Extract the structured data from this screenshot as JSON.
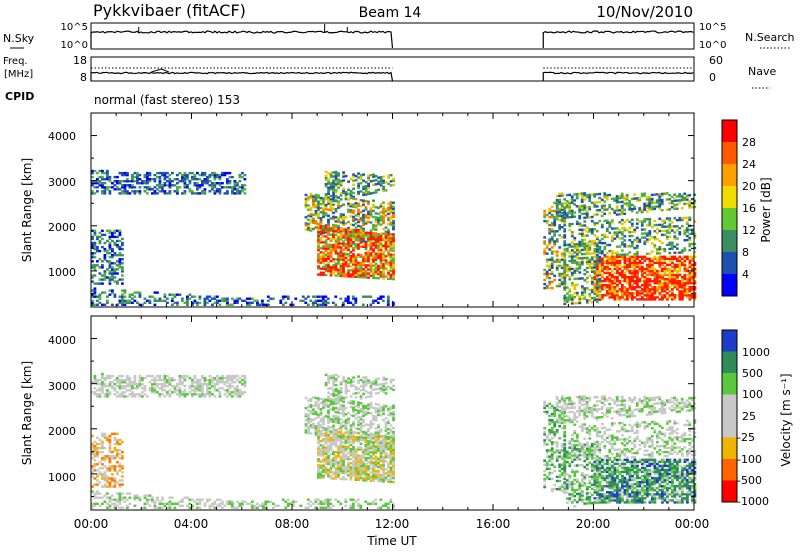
{
  "chart_data": {
    "type": "heatmap",
    "header": {
      "station": "Pykkvibaer (fitACF)",
      "beam": "Beam 14",
      "date": "10/Nov/2010"
    },
    "xlabel": "Time UT",
    "x_ticks": [
      "00:00",
      "04:00",
      "08:00",
      "12:00",
      "16:00",
      "20:00",
      "00:00"
    ],
    "x_range_hours": [
      0,
      24
    ],
    "data_gap_hours": [
      12,
      18
    ],
    "cpid_label": "CPID",
    "cpid_text": "normal (fast stereo) 153",
    "nsky_panel": {
      "left_label": "N.Sky",
      "right_label": "N.Search",
      "tick_top": "10^5",
      "tick_bottom": "10^0",
      "right_tick_top": "10^5",
      "right_tick_bottom": "10^0"
    },
    "freq_panel": {
      "left_label_1": "Freq.",
      "left_label_2": "[MHz]",
      "left_ticks": [
        "18",
        "8"
      ],
      "right_label": "Nave",
      "right_ticks": [
        "60",
        "0"
      ]
    },
    "power_panel": {
      "ylabel": "Slant Range [km]",
      "y_ticks": [
        4000,
        3000,
        2000,
        1000
      ],
      "ylim": [
        200,
        4500
      ],
      "colorbar_label": "Power [dB]",
      "colorbar_ticks": [
        "28",
        "24",
        "20",
        "16",
        "12",
        "8",
        "4"
      ],
      "colorbar_colors": [
        "#ff0000",
        "#ff5a00",
        "#ffa000",
        "#f0dc00",
        "#64c832",
        "#3c8c64",
        "#1e50b4",
        "#0000ff"
      ]
    },
    "velocity_panel": {
      "ylabel": "Slant Range [km]",
      "y_ticks": [
        4000,
        3000,
        2000,
        1000
      ],
      "ylim": [
        200,
        4500
      ],
      "colorbar_label": "Velocity [m s⁻¹]",
      "colorbar_ticks": [
        "1000",
        "500",
        "100",
        "25",
        "-25",
        "-100",
        "-500",
        "-1000"
      ],
      "colorbar_colors": [
        "#1e3cc8",
        "#2d8c5a",
        "#5ac83c",
        "#c8c8c8",
        "#c8c8c8",
        "#f0b400",
        "#ff6400",
        "#ff0000"
      ]
    }
  }
}
